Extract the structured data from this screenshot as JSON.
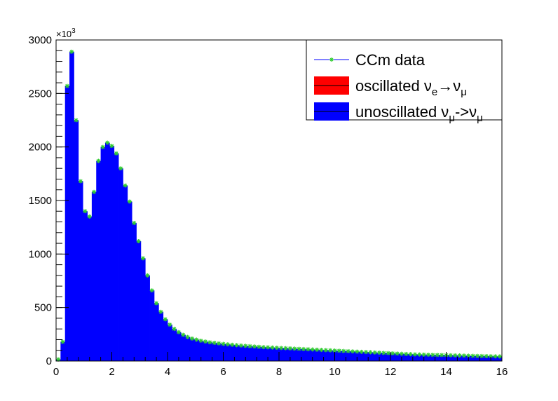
{
  "chart_data": {
    "type": "bar",
    "title": "",
    "xlabel": "",
    "ylabel": "",
    "xlim": [
      0,
      16
    ],
    "ylim": [
      0,
      3000
    ],
    "y_exponent_label": "×10",
    "y_exponent_power": "3",
    "x_ticks": [
      "0",
      "2",
      "4",
      "6",
      "8",
      "10",
      "12",
      "14",
      "16"
    ],
    "y_ticks": [
      "0",
      "500",
      "1000",
      "1500",
      "2000",
      "2500",
      "3000"
    ],
    "bin_width": 0.16,
    "bin_centers": [
      0.08,
      0.24,
      0.4,
      0.56,
      0.72,
      0.88,
      1.04,
      1.2,
      1.36,
      1.52,
      1.68,
      1.84,
      2.0,
      2.16,
      2.32,
      2.48,
      2.64,
      2.8,
      2.96,
      3.12,
      3.28,
      3.44,
      3.6,
      3.76,
      3.92,
      4.08,
      4.24,
      4.4,
      4.56,
      4.72,
      4.88,
      5.04,
      5.2,
      5.36,
      5.52,
      5.68,
      5.84,
      6.0,
      6.16,
      6.32,
      6.48,
      6.64,
      6.8,
      6.96,
      7.12,
      7.28,
      7.44,
      7.6,
      7.76,
      7.92,
      8.08,
      8.24,
      8.4,
      8.56,
      8.72,
      8.88,
      9.04,
      9.2,
      9.36,
      9.52,
      9.68,
      9.84,
      10.0,
      10.16,
      10.32,
      10.48,
      10.64,
      10.8,
      10.96,
      11.12,
      11.28,
      11.44,
      11.6,
      11.76,
      11.92,
      12.08,
      12.24,
      12.4,
      12.56,
      12.72,
      12.88,
      13.04,
      13.2,
      13.36,
      13.52,
      13.68,
      13.84,
      14.0,
      14.16,
      14.32,
      14.48,
      14.64,
      14.8,
      14.96,
      15.12,
      15.28,
      15.44,
      15.6,
      15.76,
      15.92
    ],
    "series": [
      {
        "name": "CCm data",
        "kind": "markers",
        "color": "#33cc33",
        "values": [
          15,
          180,
          2570,
          2890,
          2250,
          1680,
          1400,
          1350,
          1580,
          1870,
          2000,
          2040,
          2010,
          1940,
          1800,
          1640,
          1490,
          1290,
          1120,
          960,
          800,
          660,
          540,
          460,
          390,
          340,
          300,
          270,
          245,
          225,
          210,
          200,
          190,
          182,
          175,
          170,
          165,
          160,
          156,
          152,
          148,
          145,
          142,
          139,
          136,
          133,
          130,
          128,
          126,
          124,
          122,
          120,
          118,
          116,
          114,
          112,
          110,
          108,
          106,
          104,
          102,
          100,
          98,
          96,
          94,
          92,
          90,
          88,
          86,
          84,
          82,
          80,
          78,
          76,
          74,
          72,
          70,
          68,
          66,
          64,
          62,
          61,
          60,
          59,
          58,
          57,
          56,
          55,
          54,
          53,
          52,
          51,
          50,
          49,
          48,
          47,
          46,
          45,
          44,
          43
        ]
      },
      {
        "name": "oscillated ν_e→ν_μ",
        "kind": "fill",
        "color": "#ff0000",
        "values": [
          0,
          0,
          0,
          0,
          0,
          0,
          0,
          0,
          0,
          0,
          0,
          0,
          0,
          0,
          0,
          0,
          0,
          0,
          0,
          0,
          0,
          0,
          0,
          0,
          0,
          0,
          0,
          0,
          0,
          0,
          0,
          0,
          0,
          0,
          0,
          0,
          0,
          0,
          0,
          0,
          0,
          0,
          0,
          0,
          0,
          0,
          0,
          0,
          0,
          0,
          0,
          0,
          0,
          0,
          0,
          0,
          0,
          0,
          0,
          0,
          0,
          0,
          0,
          0,
          0,
          0,
          0,
          0,
          0,
          0,
          0,
          0,
          0,
          0,
          0,
          0,
          0,
          0,
          0,
          0,
          0,
          0,
          0,
          0,
          0,
          0,
          0,
          0,
          0,
          0,
          0,
          0,
          0,
          0,
          0,
          0,
          0,
          0,
          0,
          0
        ]
      },
      {
        "name": "unoscillated ν_μ->ν_μ",
        "kind": "fill",
        "color": "#0000ff",
        "values": [
          15,
          180,
          2570,
          2890,
          2250,
          1680,
          1400,
          1350,
          1580,
          1870,
          2000,
          2040,
          2010,
          1940,
          1800,
          1640,
          1490,
          1290,
          1120,
          960,
          800,
          660,
          540,
          460,
          390,
          340,
          300,
          270,
          245,
          225,
          210,
          200,
          190,
          182,
          175,
          170,
          165,
          160,
          156,
          152,
          148,
          145,
          142,
          139,
          136,
          133,
          130,
          128,
          126,
          124,
          122,
          120,
          118,
          116,
          114,
          112,
          110,
          108,
          106,
          104,
          102,
          100,
          98,
          96,
          94,
          92,
          90,
          88,
          86,
          84,
          82,
          80,
          78,
          76,
          74,
          72,
          70,
          68,
          66,
          64,
          62,
          61,
          60,
          59,
          58,
          57,
          56,
          55,
          54,
          53,
          52,
          51,
          50,
          49,
          48,
          47,
          46,
          45,
          44,
          43
        ]
      }
    ],
    "legend": {
      "position": "top-right",
      "entries": [
        {
          "label": "CCm data",
          "parts": [
            [
              "CCm data",
              ""
            ]
          ]
        },
        {
          "label": "oscillated ν_e→ν_μ",
          "parts": [
            [
              "oscillated ν",
              ""
            ],
            [
              "e",
              "sub"
            ],
            [
              "→ν",
              ""
            ],
            [
              "μ",
              "sub"
            ]
          ]
        },
        {
          "label": "unoscillated ν_μ->ν_μ",
          "parts": [
            [
              "unoscillated ν",
              ""
            ],
            [
              "μ",
              "sub"
            ],
            [
              "->ν",
              ""
            ],
            [
              "μ",
              "sub"
            ]
          ]
        }
      ]
    }
  }
}
